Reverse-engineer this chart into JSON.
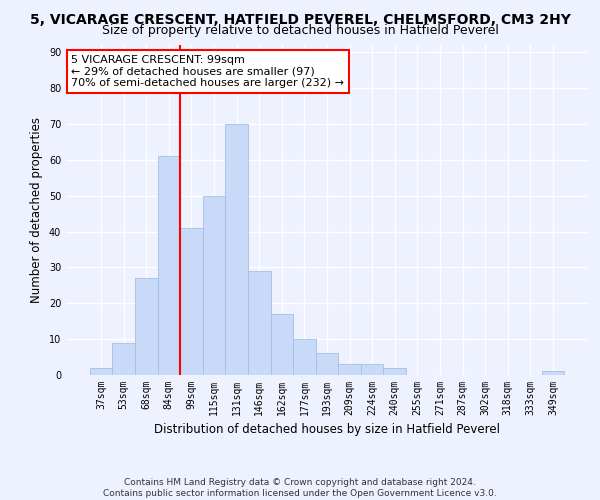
{
  "title": "5, VICARAGE CRESCENT, HATFIELD PEVEREL, CHELMSFORD, CM3 2HY",
  "subtitle": "Size of property relative to detached houses in Hatfield Peverel",
  "xlabel": "Distribution of detached houses by size in Hatfield Peverel",
  "ylabel": "Number of detached properties",
  "categories": [
    "37sqm",
    "53sqm",
    "68sqm",
    "84sqm",
    "99sqm",
    "115sqm",
    "131sqm",
    "146sqm",
    "162sqm",
    "177sqm",
    "193sqm",
    "209sqm",
    "224sqm",
    "240sqm",
    "255sqm",
    "271sqm",
    "287sqm",
    "302sqm",
    "318sqm",
    "333sqm",
    "349sqm"
  ],
  "values": [
    2,
    9,
    27,
    61,
    41,
    50,
    70,
    29,
    17,
    10,
    6,
    3,
    3,
    2,
    0,
    0,
    0,
    0,
    0,
    0,
    1
  ],
  "bar_color": "#c9daf8",
  "bar_edge_color": "#a4bfe0",
  "property_line_index": 4,
  "annotation_line1": "5 VICARAGE CRESCENT: 99sqm",
  "annotation_line2": "← 29% of detached houses are smaller (97)",
  "annotation_line3": "70% of semi-detached houses are larger (232) →",
  "annotation_box_color": "white",
  "annotation_box_edge_color": "red",
  "property_line_color": "red",
  "ylim": [
    0,
    92
  ],
  "yticks": [
    0,
    10,
    20,
    30,
    40,
    50,
    60,
    70,
    80,
    90
  ],
  "footer_line1": "Contains HM Land Registry data © Crown copyright and database right 2024.",
  "footer_line2": "Contains public sector information licensed under the Open Government Licence v3.0.",
  "background_color": "#eef2ff",
  "grid_color": "white",
  "title_fontsize": 10,
  "subtitle_fontsize": 9,
  "axis_label_fontsize": 8.5,
  "tick_fontsize": 7,
  "annotation_fontsize": 8,
  "footer_fontsize": 6.5
}
